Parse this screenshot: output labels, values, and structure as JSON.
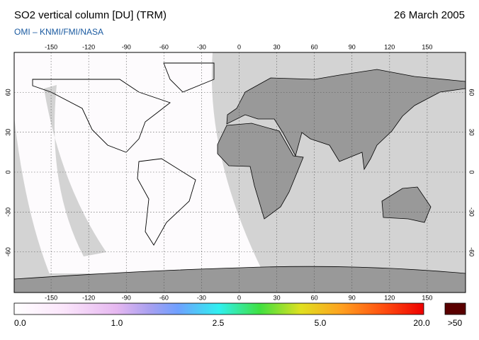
{
  "header": {
    "title": "SO2 vertical column [DU] (TRM)",
    "date": "26 March 2005",
    "source": "OMI – KNMI/FMI/NASA"
  },
  "map": {
    "lon_ticks": [
      -150,
      -120,
      -90,
      -60,
      -30,
      0,
      30,
      60,
      90,
      120,
      150
    ],
    "lat_ticks": [
      60,
      30,
      0,
      -30,
      -60
    ]
  },
  "colorbar": {
    "labels": [
      "0.0",
      "1.0",
      "2.5",
      "5.0",
      "20.0"
    ],
    "overflow_label": ">50"
  }
}
